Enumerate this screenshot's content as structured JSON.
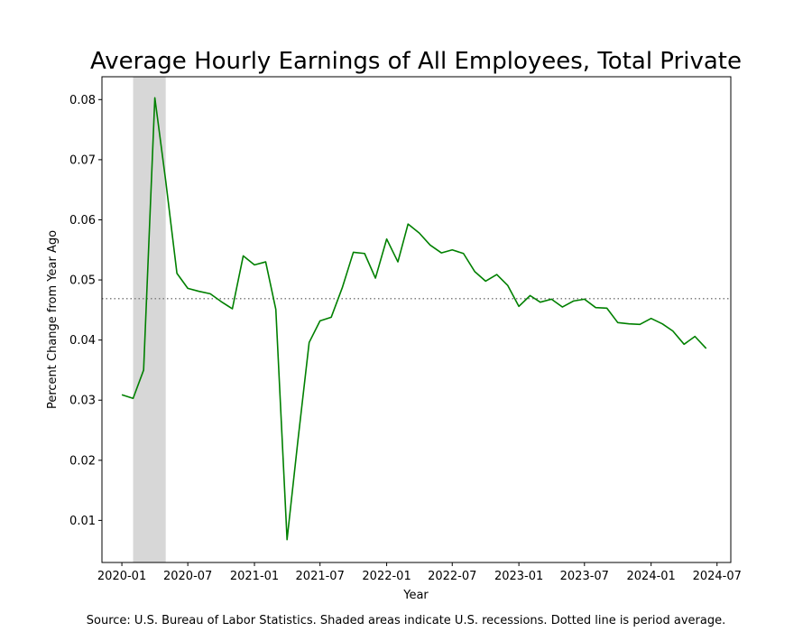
{
  "chart_data": {
    "type": "line",
    "title": "Average Hourly Earnings of All Employees, Total Private",
    "xlabel": "Year",
    "ylabel": "Percent Change from Year Ago",
    "source_note": "Source: U.S. Bureau of Labor Statistics. Shaded areas indicate U.S. recessions. Dotted line is period average.",
    "xlim": [
      "2019-11-07",
      "2024-08-08"
    ],
    "ylim": [
      0.003,
      0.0838
    ],
    "x_ticks": [
      "2020-01",
      "2020-07",
      "2021-01",
      "2021-07",
      "2022-01",
      "2022-07",
      "2023-01",
      "2023-07",
      "2024-01",
      "2024-07"
    ],
    "y_ticks": [
      0.01,
      0.02,
      0.03,
      0.04,
      0.05,
      0.06,
      0.07,
      0.08
    ],
    "grid": false,
    "legend": "none",
    "recession": {
      "start": "2020-02-01",
      "end": "2020-05-01",
      "color": "#d7d7d7"
    },
    "average": {
      "value": 0.0469,
      "color": "#808080",
      "style": "dotted"
    },
    "line_color": "#008000",
    "series": [
      {
        "x": [
          "2020-01-01",
          "2020-02-01",
          "2020-03-01",
          "2020-04-01",
          "2020-05-01",
          "2020-06-01",
          "2020-07-01",
          "2020-08-01",
          "2020-09-01",
          "2020-10-01",
          "2020-11-01",
          "2020-12-01",
          "2021-01-01",
          "2021-02-01",
          "2021-03-01",
          "2021-04-01",
          "2021-05-01",
          "2021-06-01",
          "2021-07-01",
          "2021-08-01",
          "2021-09-01",
          "2021-10-01",
          "2021-11-01",
          "2021-12-01",
          "2022-01-01",
          "2022-02-01",
          "2022-03-01",
          "2022-04-01",
          "2022-05-01",
          "2022-06-01",
          "2022-07-01",
          "2022-08-01",
          "2022-09-01",
          "2022-10-01",
          "2022-11-01",
          "2022-12-01",
          "2023-01-01",
          "2023-02-01",
          "2023-03-01",
          "2023-04-01",
          "2023-05-01",
          "2023-06-01",
          "2023-07-01",
          "2023-08-01",
          "2023-09-01",
          "2023-10-01",
          "2023-11-01",
          "2023-12-01",
          "2024-01-01",
          "2024-02-01",
          "2024-03-01",
          "2024-04-01",
          "2024-05-01",
          "2024-06-01"
        ],
        "y": [
          0.0309,
          0.0303,
          0.035,
          0.0803,
          0.0665,
          0.0511,
          0.0486,
          0.0481,
          0.0477,
          0.0464,
          0.0452,
          0.054,
          0.0525,
          0.053,
          0.0451,
          0.0068,
          0.0233,
          0.0396,
          0.0432,
          0.0438,
          0.0488,
          0.0546,
          0.0544,
          0.0503,
          0.0568,
          0.053,
          0.0593,
          0.0578,
          0.0558,
          0.0545,
          0.055,
          0.0544,
          0.0514,
          0.0498,
          0.0509,
          0.0491,
          0.0456,
          0.0474,
          0.0463,
          0.0468,
          0.0455,
          0.0465,
          0.0468,
          0.0454,
          0.0453,
          0.0429,
          0.0427,
          0.0426,
          0.0436,
          0.0427,
          0.0415,
          0.0393,
          0.0406,
          0.0386
        ]
      }
    ]
  }
}
